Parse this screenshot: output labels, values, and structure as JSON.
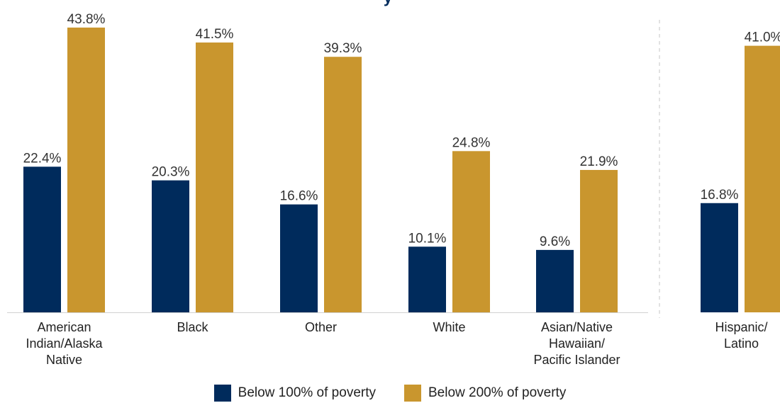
{
  "chart_data": {
    "type": "bar",
    "title": "y",
    "categories": [
      "American Indian/Alaska Native",
      "Black",
      "Other",
      "White",
      "Asian/Native Hawaiian/ Pacific Islander",
      "Hispanic/ Latino"
    ],
    "category_lines": [
      [
        "American",
        "Indian/Alaska",
        "Native"
      ],
      [
        "Black"
      ],
      [
        "Other"
      ],
      [
        "White"
      ],
      [
        "Asian/Native",
        "Hawaiian/",
        "Pacific Islander"
      ],
      [
        "Hispanic/",
        "Latino"
      ]
    ],
    "series": [
      {
        "name": "Below 100% of poverty",
        "values": [
          22.4,
          20.3,
          16.6,
          10.1,
          9.6,
          16.8
        ],
        "labels": [
          "22.4%",
          "20.3%",
          "16.6%",
          "10.1%",
          "9.6%",
          "16.8%"
        ],
        "color": "#002b5c"
      },
      {
        "name": "Below 200% of poverty",
        "values": [
          43.8,
          41.5,
          39.3,
          24.8,
          21.9,
          41.0
        ],
        "labels": [
          "43.8%",
          "41.5%",
          "39.3%",
          "24.8%",
          "21.9%",
          "41.0%"
        ],
        "color": "#c9962e"
      }
    ],
    "xlabel": "",
    "ylabel": "",
    "grid": false,
    "legend_position": "bottom",
    "separator_before_last_category": true
  }
}
